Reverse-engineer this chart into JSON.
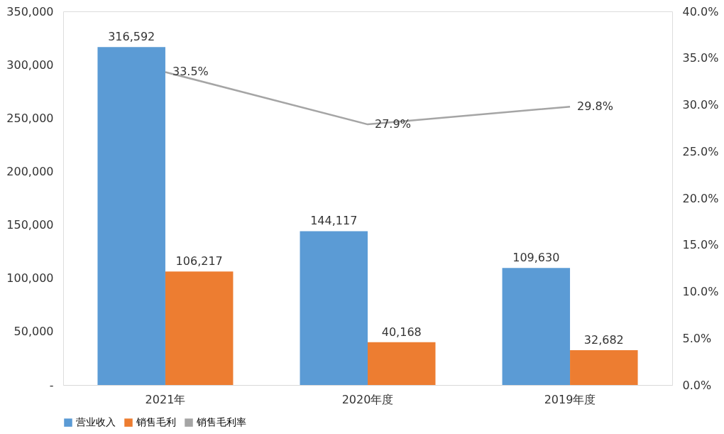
{
  "chart_data": {
    "type": "bar",
    "categories": [
      "2021年",
      "2020年度",
      "2019年度"
    ],
    "series": [
      {
        "name": "营业收入",
        "color": "#5b9bd5",
        "values": [
          316592,
          144117,
          109630
        ],
        "value_labels": [
          "316,592",
          "144,117",
          "109,630"
        ]
      },
      {
        "name": "销售毛利",
        "color": "#ed7d31",
        "values": [
          106217,
          40168,
          32682
        ],
        "value_labels": [
          "106,217",
          "40,168",
          "32,682"
        ]
      },
      {
        "name": "销售毛利率",
        "type": "line",
        "axis": "y2",
        "color": "#a5a5a5",
        "values": [
          33.5,
          27.9,
          29.8
        ],
        "value_labels": [
          "33.5%",
          "27.9%",
          "29.8%"
        ]
      }
    ],
    "ylim": [
      0,
      350000
    ],
    "yticks": [
      {
        "value": 0,
        "label": "-"
      },
      {
        "value": 50000,
        "label": "50,000"
      },
      {
        "value": 100000,
        "label": "100,000"
      },
      {
        "value": 150000,
        "label": "150,000"
      },
      {
        "value": 200000,
        "label": "200,000"
      },
      {
        "value": 250000,
        "label": "250,000"
      },
      {
        "value": 300000,
        "label": "300,000"
      },
      {
        "value": 350000,
        "label": "350,000"
      }
    ],
    "y2lim": [
      0,
      40
    ],
    "y2ticks": [
      {
        "value": 0,
        "label": "0.0%"
      },
      {
        "value": 5,
        "label": "5.0%"
      },
      {
        "value": 10,
        "label": "10.0%"
      },
      {
        "value": 15,
        "label": "15.0%"
      },
      {
        "value": 20,
        "label": "20.0%"
      },
      {
        "value": 25,
        "label": "25.0%"
      },
      {
        "value": 30,
        "label": "30.0%"
      },
      {
        "value": 35,
        "label": "35.0%"
      },
      {
        "value": 40,
        "label": "40.0%"
      }
    ],
    "legend": "bottom",
    "grid": false,
    "marker": "none",
    "line_style": "solid"
  }
}
